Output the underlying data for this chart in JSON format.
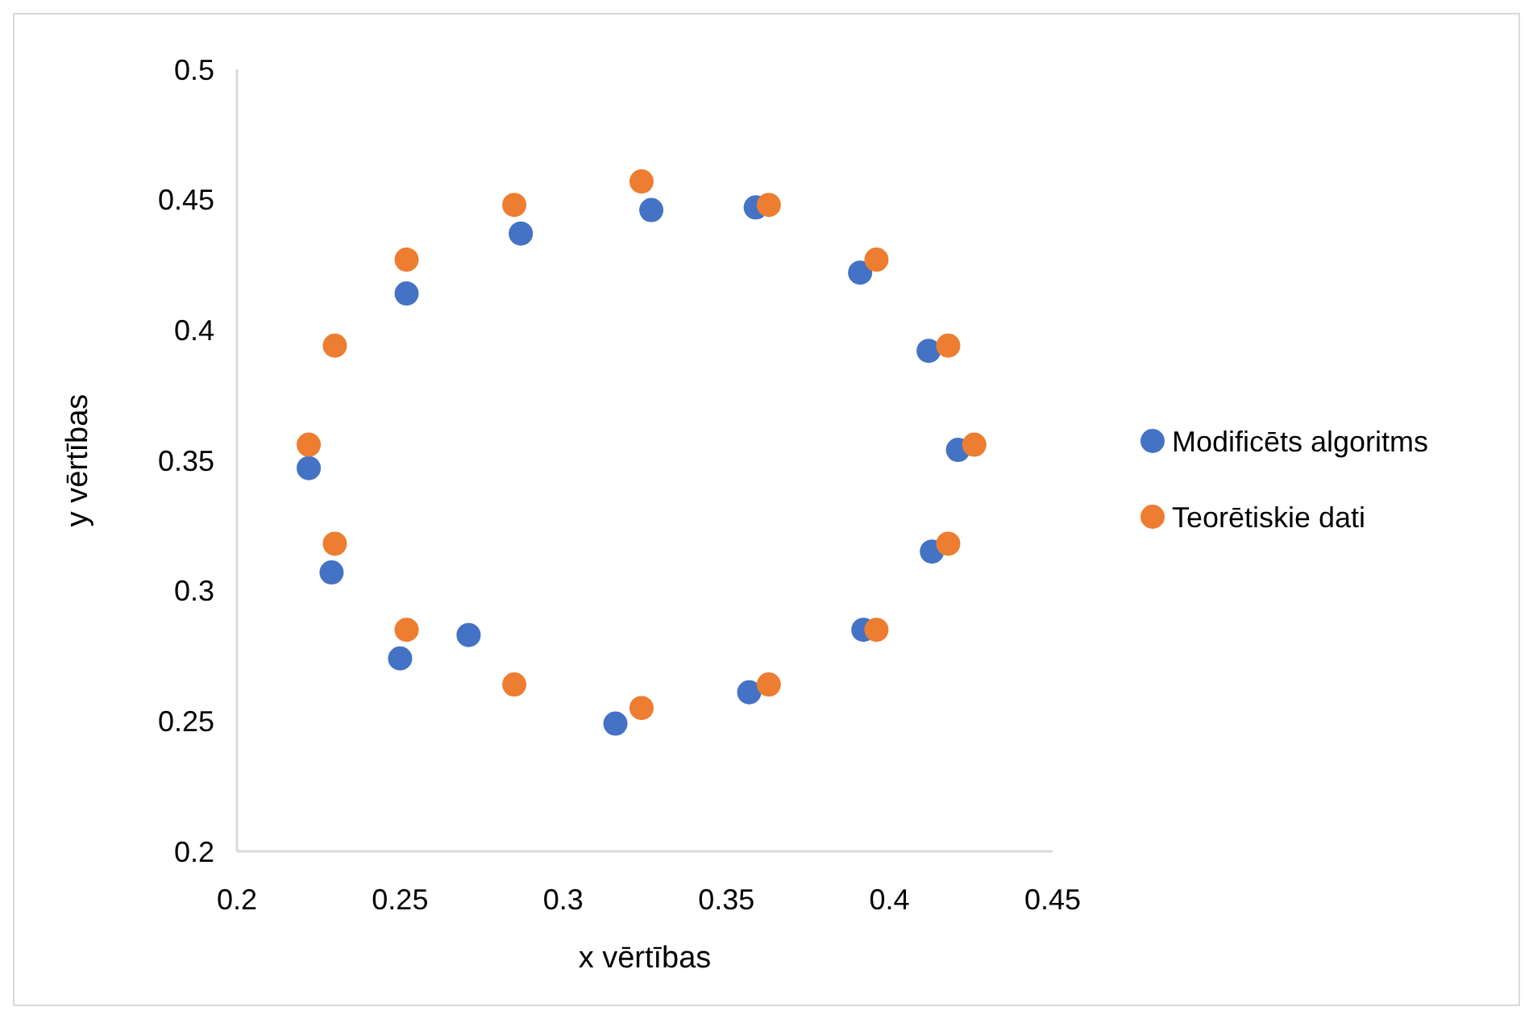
{
  "chart_data": {
    "type": "scatter",
    "xlabel": "x vērtības",
    "ylabel": "y vērtības",
    "xlim": [
      0.2,
      0.45
    ],
    "xticks": [
      0.2,
      0.25,
      0.3,
      0.35,
      0.4,
      0.45
    ],
    "ylim": [
      0.2,
      0.5
    ],
    "yticks": [
      0.2,
      0.25,
      0.3,
      0.35,
      0.4,
      0.45,
      0.5
    ],
    "grid": false,
    "legend": "right",
    "marker": "circle",
    "series": [
      {
        "name": "Modificēts algoritms",
        "color": "#4472c4",
        "x": [
          0.327,
          0.287,
          0.252,
          0.222,
          0.229,
          0.25,
          0.271,
          0.316,
          0.357,
          0.392,
          0.413,
          0.421,
          0.412,
          0.391,
          0.359
        ],
        "values": [
          0.446,
          0.437,
          0.414,
          0.347,
          0.307,
          0.274,
          0.283,
          0.249,
          0.261,
          0.285,
          0.315,
          0.354,
          0.392,
          0.422,
          0.447
        ]
      },
      {
        "name": "Teorētiskie dati",
        "color": "#ed7d31",
        "x": [
          0.324,
          0.363,
          0.396,
          0.418,
          0.426,
          0.418,
          0.396,
          0.363,
          0.324,
          0.285,
          0.252,
          0.23,
          0.222,
          0.23,
          0.252,
          0.285
        ],
        "values": [
          0.457,
          0.448,
          0.427,
          0.394,
          0.356,
          0.318,
          0.285,
          0.264,
          0.255,
          0.264,
          0.285,
          0.318,
          0.356,
          0.394,
          0.427,
          0.448
        ]
      }
    ]
  }
}
